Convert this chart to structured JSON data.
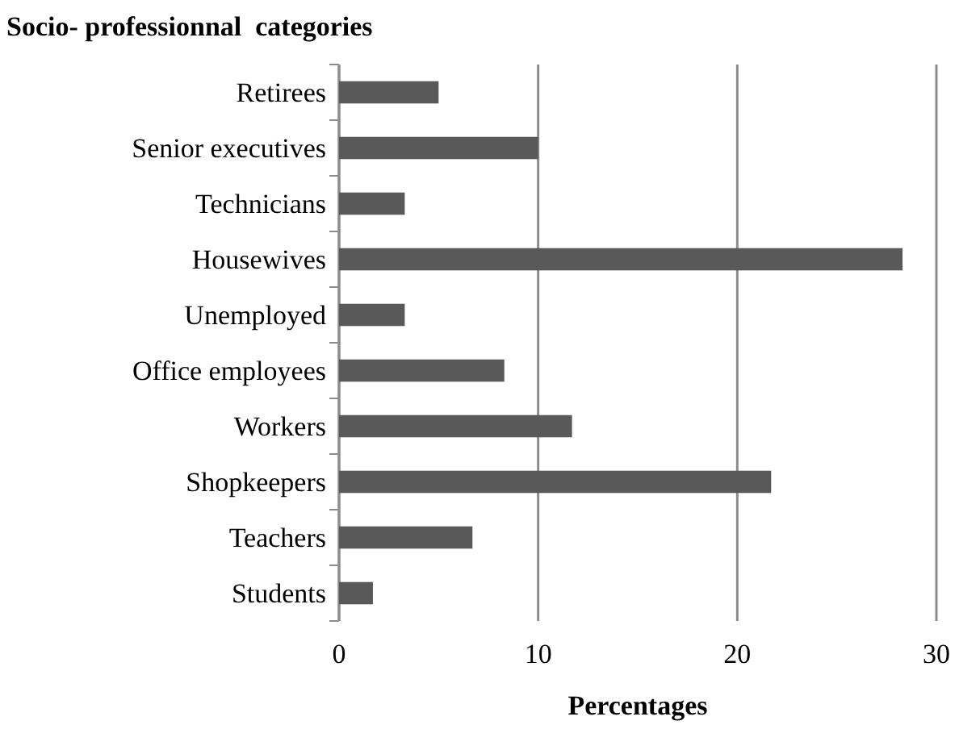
{
  "chart_data": {
    "type": "bar",
    "orientation": "horizontal",
    "title": "Socio- professionnal  categories",
    "xlabel": "Percentages",
    "categories": [
      "Retirees",
      "Senior executives",
      "Technicians",
      "Housewives",
      "Unemployed",
      "Office employees",
      "Workers",
      "Shopkeepers",
      "Teachers",
      "Students"
    ],
    "values": [
      5.0,
      10.0,
      3.3,
      28.3,
      3.3,
      8.3,
      11.7,
      21.7,
      6.7,
      1.7
    ],
    "color": "#595959",
    "xlim": [
      0,
      30
    ],
    "xticks": [
      0,
      10,
      20,
      30
    ],
    "grid": "x"
  }
}
